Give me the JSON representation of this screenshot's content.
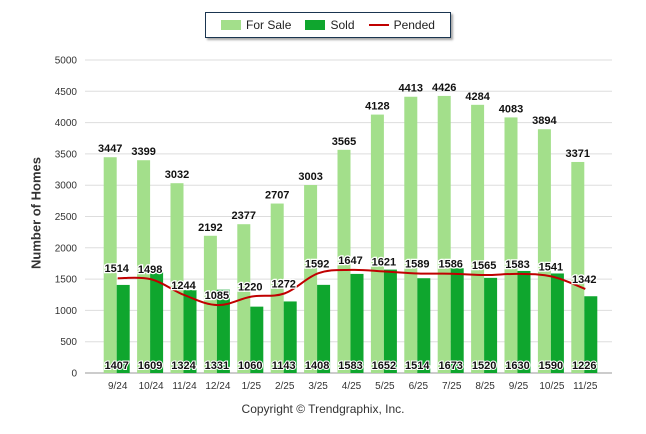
{
  "legend": {
    "for_sale": "For Sale",
    "sold": "Sold",
    "pended": "Pended"
  },
  "copyright": "Copyright © Trendgraphix, Inc.",
  "colors": {
    "for_sale": "#a3df8b",
    "sold": "#0fa62e",
    "pended": "#c00000",
    "grid": "#dddddd"
  },
  "chart_data": {
    "type": "bar",
    "ylabel": "Number of Homes",
    "xlabel": "",
    "ylim": [
      0,
      5000
    ],
    "yticks": [
      0,
      500,
      1000,
      1500,
      2000,
      2500,
      3000,
      3500,
      4000,
      4500,
      5000
    ],
    "grid": true,
    "legend_position": "top-center",
    "categories": [
      "9/24",
      "10/24",
      "11/24",
      "12/24",
      "1/25",
      "2/25",
      "3/25",
      "4/25",
      "5/25",
      "6/25",
      "7/25",
      "8/25",
      "9/25",
      "10/25",
      "11/25"
    ],
    "series": [
      {
        "name": "For Sale",
        "type": "bar",
        "values": [
          3447,
          3399,
          3032,
          2192,
          2377,
          2707,
          3003,
          3565,
          4128,
          4413,
          4426,
          4284,
          4083,
          3894,
          3371
        ]
      },
      {
        "name": "Sold",
        "type": "bar",
        "values": [
          1407,
          1609,
          1324,
          1331,
          1060,
          1143,
          1408,
          1583,
          1652,
          1514,
          1673,
          1520,
          1630,
          1590,
          1226
        ]
      },
      {
        "name": "Pended",
        "type": "line",
        "values": [
          1514,
          1498,
          1244,
          1085,
          1220,
          1272,
          1592,
          1647,
          1621,
          1589,
          1586,
          1565,
          1583,
          1541,
          1342
        ]
      }
    ]
  }
}
